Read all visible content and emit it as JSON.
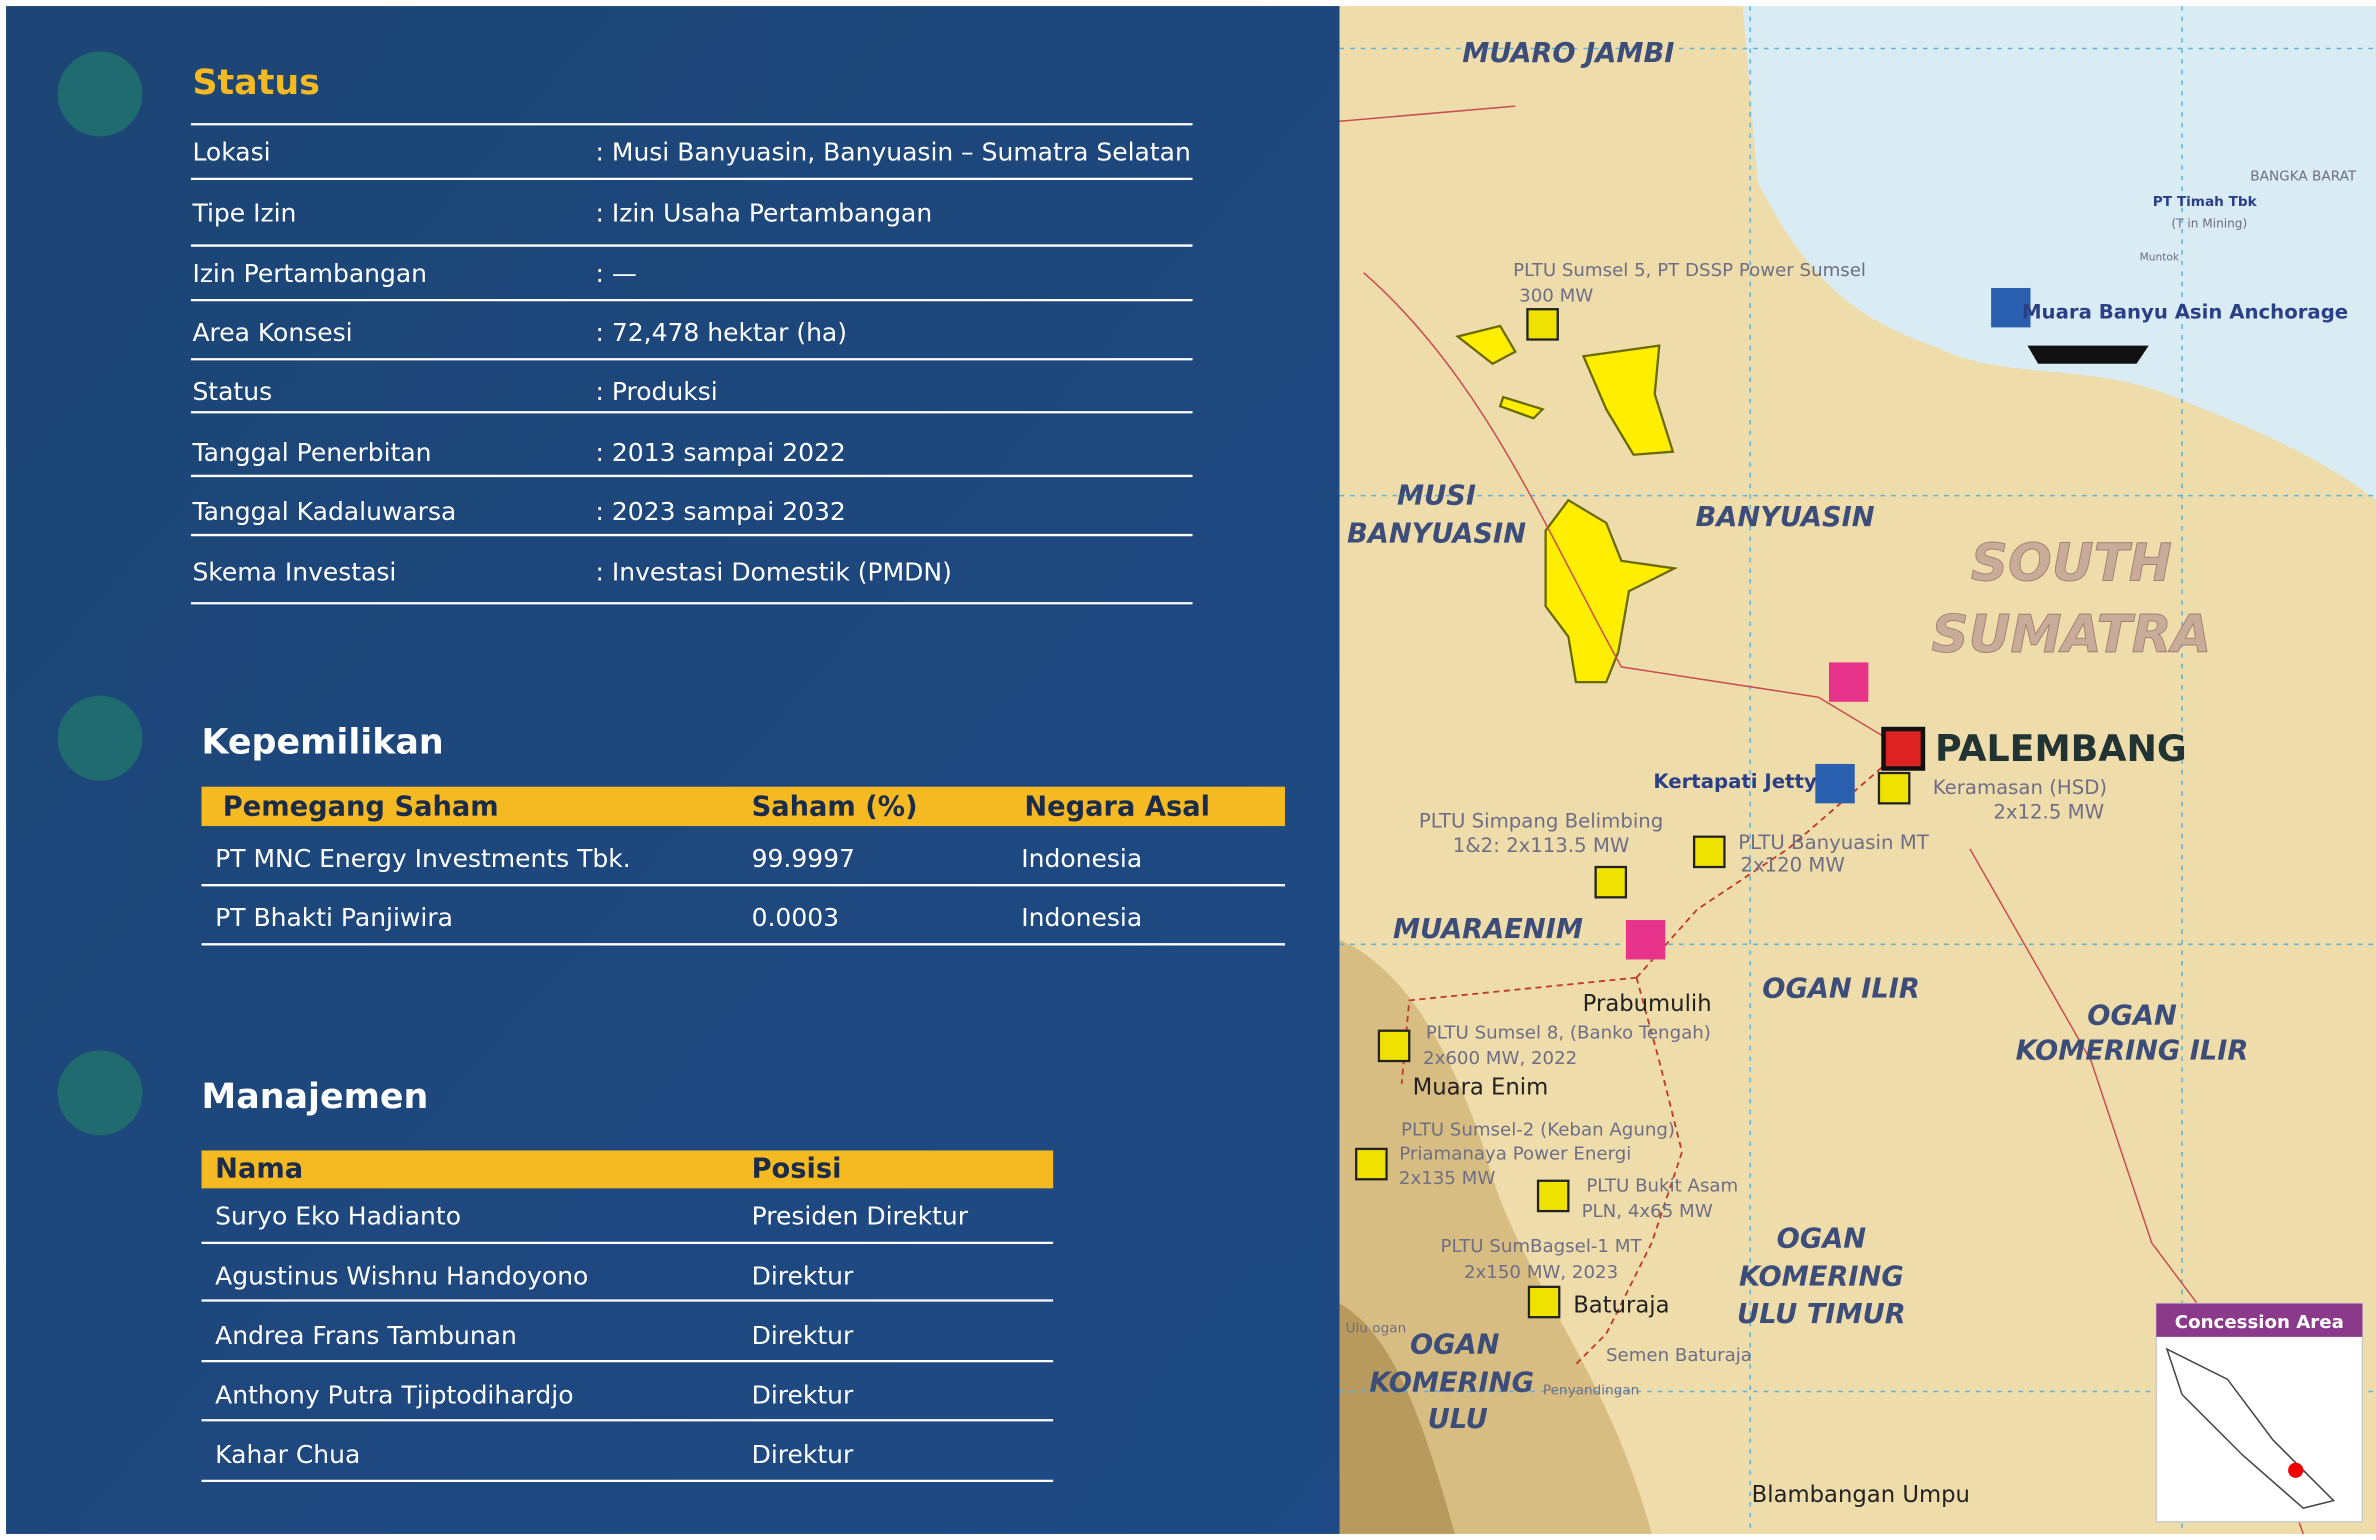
{
  "status": {
    "title": "Status",
    "rows": [
      [
        "Lokasi",
        ": Musi Banyuasin, Banyuasin – Sumatra Selatan"
      ],
      [
        "Tipe Izin",
        ": Izin Usaha Pertambangan"
      ],
      [
        "Izin Pertambangan",
        ": —"
      ],
      [
        "Area Konsesi",
        ": 72,478 hektar (ha)"
      ],
      [
        "Status",
        ": Produksi"
      ],
      [
        "Tanggal Penerbitan",
        ": 2013 sampai 2022"
      ],
      [
        "Tanggal Kadaluwarsa",
        ": 2023 sampai 2032"
      ],
      [
        "Skema Investasi",
        ": Investasi Domestik (PMDN)"
      ]
    ]
  },
  "ownership": {
    "title": "Kepemilikan",
    "header": [
      "Pemegang Saham",
      "Saham (%)",
      "Negara Asal"
    ],
    "rows": [
      [
        "PT MNC Energy Investments Tbk.",
        "99.9997",
        "Indonesia"
      ],
      [
        "PT Bhakti Panjiwira",
        "0.0003",
        "Indonesia"
      ]
    ]
  },
  "management": {
    "title": "Manajemen",
    "header": [
      "Nama",
      "Posisi"
    ],
    "rows": [
      [
        "Suryo Eko Hadianto",
        "Presiden Direktur"
      ],
      [
        "Agustinus Wishnu Handoyono",
        "Direktur"
      ],
      [
        "Andrea Frans Tambunan",
        "Direktur"
      ],
      [
        "Anthony Putra Tjiptodihardjo",
        "Direktur"
      ],
      [
        "Kahar Chua",
        "Direktur"
      ]
    ]
  },
  "map": {
    "legend": "Concession Area",
    "labels": [
      "MUARO JAMBI",
      "MUSI",
      "BANYUASIN",
      "BANYUASIN",
      "SOUTH",
      "SUMATRA",
      "PALEMBANG",
      "Kertapati Jetty",
      "Keramasan (HSD)",
      "2x12.5 MW",
      "PLTU Sumsel 5, PT DSSP Power Sumsel",
      "300 MW",
      "Muara Banyu Asin Anchorage",
      "BANGKA BARAT",
      "PT Timah Tbk",
      "(T in Mining)",
      "Muntok",
      "PLTU Simpang Belimbing",
      "1&2: 2x113.5 MW",
      "PLTU Banyuasin MT",
      "2x120 MW",
      "MUARAENIM",
      "OGAN ILIR",
      "OGAN",
      "KOMERING ILIR",
      "Prabumulih",
      "PLTU Sumsel 8, (Banko Tengah)",
      "2x600 MW, 2022",
      "Muara Enim",
      "PLTU Sumsel-2 (Keban Agung)",
      "Priamanaya Power Energi",
      "2x135 MW",
      "PLTU Bukit Asam",
      "PLN, 4x65 MW",
      "PLTU SumBagsel-1 MT",
      "2x150 MW, 2023",
      "OGAN",
      "KOMERING",
      "ULU TIMUR",
      "Baturaja",
      "Ulu ogan",
      "OGAN",
      "KOMERING",
      "ULU",
      "Semen Baturaja",
      "Penyandingan",
      "Blambangan Umpu"
    ]
  }
}
